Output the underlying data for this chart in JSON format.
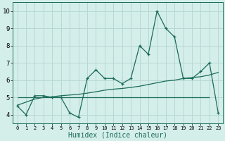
{
  "title": "",
  "xlabel": "Humidex (Indice chaleur)",
  "xlim": [
    -0.5,
    23.5
  ],
  "ylim": [
    3.5,
    10.5
  ],
  "xticks": [
    0,
    1,
    2,
    3,
    4,
    5,
    6,
    7,
    8,
    9,
    10,
    11,
    12,
    13,
    14,
    15,
    16,
    17,
    18,
    19,
    20,
    21,
    22,
    23
  ],
  "yticks": [
    4,
    5,
    6,
    7,
    8,
    9,
    10
  ],
  "bg_color": "#d4eeea",
  "grid_color": "#b8d8d4",
  "line_color": "#1a6b5a",
  "hours": [
    0,
    1,
    2,
    3,
    4,
    5,
    6,
    7,
    8,
    9,
    10,
    11,
    12,
    13,
    14,
    15,
    16,
    17,
    18,
    19,
    20,
    21,
    22,
    23
  ],
  "humidex": [
    4.5,
    4.0,
    5.1,
    5.1,
    5.0,
    5.0,
    4.1,
    3.85,
    6.1,
    6.6,
    6.1,
    6.1,
    5.8,
    6.1,
    8.0,
    7.5,
    10.0,
    9.0,
    8.5,
    6.1,
    6.1,
    6.5,
    7.0,
    4.1
  ],
  "trend": [
    4.55,
    4.73,
    4.91,
    5.0,
    5.04,
    5.1,
    5.14,
    5.18,
    5.25,
    5.33,
    5.42,
    5.48,
    5.52,
    5.58,
    5.65,
    5.75,
    5.85,
    5.95,
    6.0,
    6.1,
    6.15,
    6.2,
    6.3,
    6.45
  ],
  "flat_y": 5.0,
  "flat_x_start": 0,
  "flat_x_end": 22
}
